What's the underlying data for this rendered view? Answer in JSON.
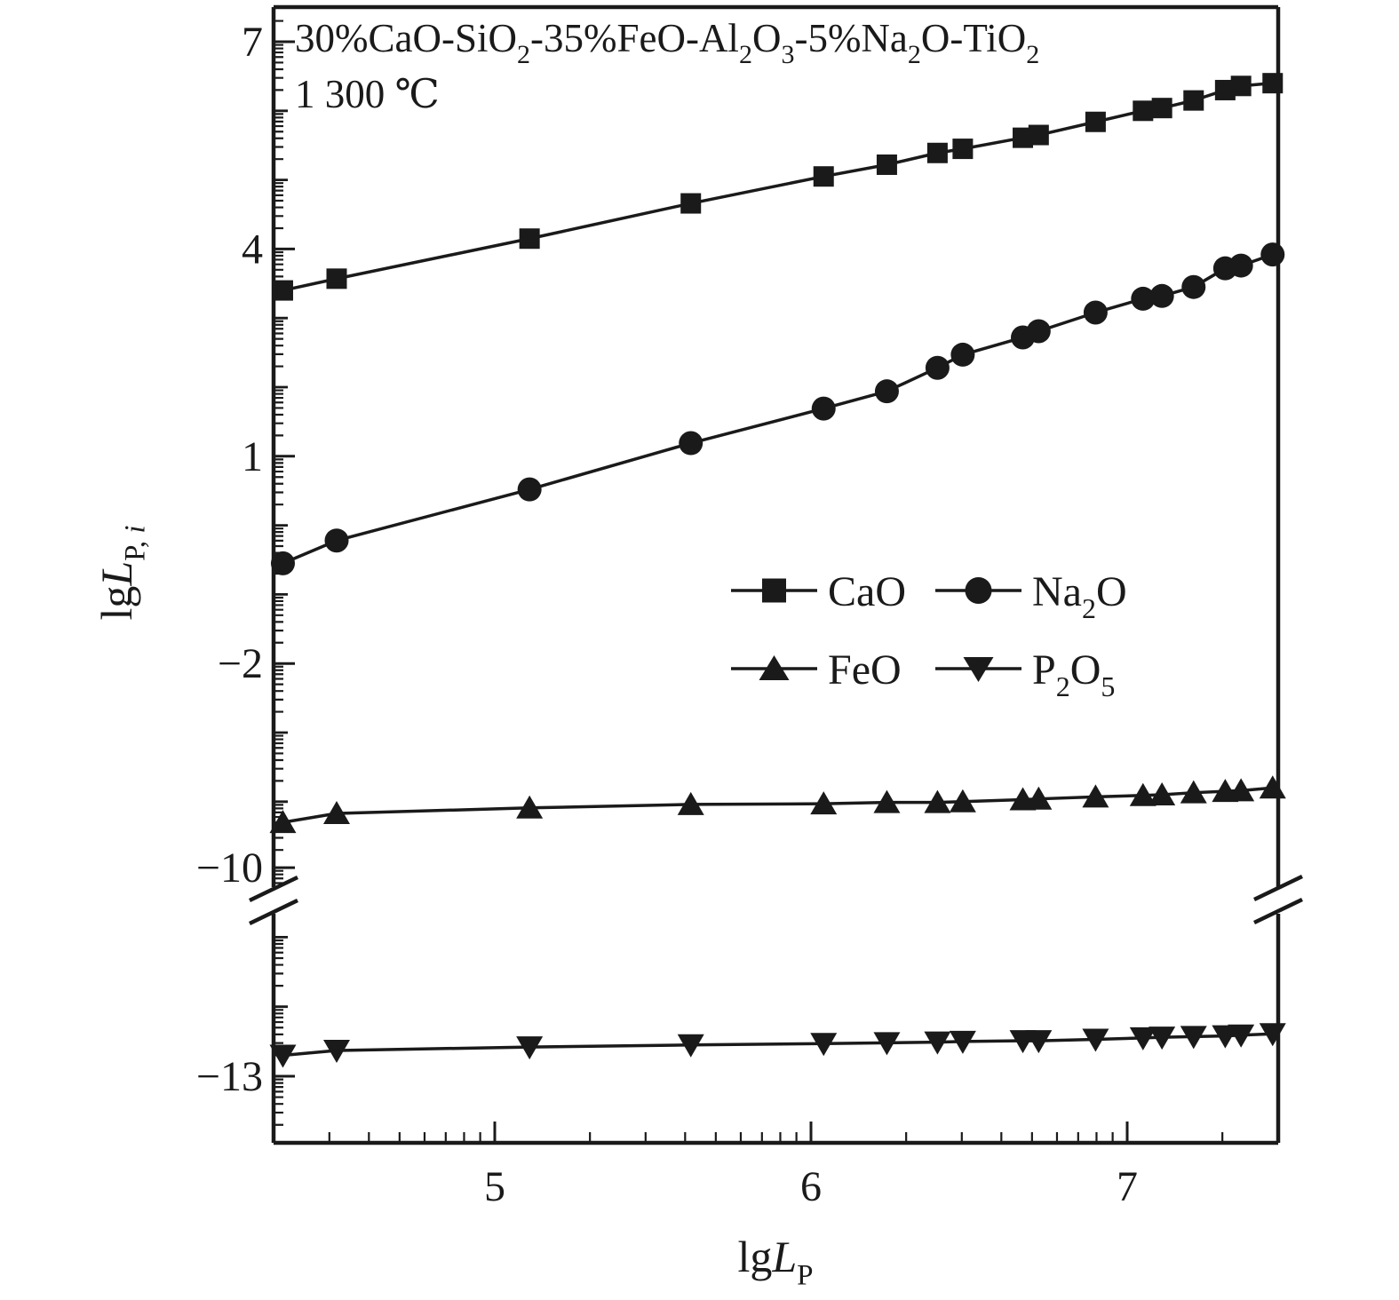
{
  "chart_data": {
    "type": "line",
    "title": "30%CaO-SiO_2_-35%FeO-Al_2_O_3_-5%Na_2_O-TiO_2_",
    "subtitle": "1 300 ℃",
    "xlabel_segments": [
      {
        "t": "lg"
      },
      {
        "t": "L",
        "italic": true
      },
      {
        "t": "P",
        "sub": true
      }
    ],
    "ylabel_segments": [
      {
        "t": "lg"
      },
      {
        "t": "L",
        "italic": true
      },
      {
        "t": "P, ",
        "sub": true
      },
      {
        "t": "i",
        "sub": true,
        "italic": true
      }
    ],
    "x_axis": {
      "range": [
        4.3,
        7.48
      ],
      "scale": "log-decade-minor-ticks",
      "major_ticks": [
        {
          "label": "5",
          "value": 5
        },
        {
          "label": "6",
          "value": 6
        },
        {
          "label": "7",
          "value": 7
        }
      ]
    },
    "y_axis": {
      "upper_range": [
        -5.1,
        7.5
      ],
      "lower_range": [
        -13.96,
        -10.0
      ],
      "axis_break_between": [
        -5,
        -10
      ],
      "scale": "log-decade-minor-ticks",
      "major_ticks": [
        {
          "label": "7",
          "value": 7,
          "segment": "upper"
        },
        {
          "label": "4",
          "value": 4,
          "segment": "upper"
        },
        {
          "label": "1",
          "value": 1,
          "segment": "upper"
        },
        {
          "label": "−2",
          "value": -2,
          "segment": "upper"
        },
        {
          "label": "−10",
          "value": -10,
          "segment": "lower"
        },
        {
          "label": "−13",
          "value": -13,
          "segment": "lower"
        }
      ]
    },
    "x": [
      4.33,
      4.5,
      5.11,
      5.62,
      6.04,
      6.24,
      6.4,
      6.48,
      6.67,
      6.72,
      6.9,
      7.05,
      7.11,
      7.21,
      7.31,
      7.36,
      7.46
    ],
    "series": [
      {
        "name": "CaO",
        "label": "CaO",
        "marker": "square",
        "values": [
          3.4,
          3.57,
          4.15,
          4.66,
          5.05,
          5.22,
          5.39,
          5.45,
          5.61,
          5.65,
          5.84,
          6.0,
          6.04,
          6.15,
          6.3,
          6.36,
          6.4
        ]
      },
      {
        "name": "Na2O",
        "label": "Na_2_O",
        "marker": "circle",
        "values": [
          -0.55,
          -0.22,
          0.52,
          1.19,
          1.69,
          1.94,
          2.28,
          2.47,
          2.72,
          2.81,
          3.08,
          3.28,
          3.32,
          3.45,
          3.72,
          3.76,
          3.92
        ]
      },
      {
        "name": "FeO",
        "label": "FeO",
        "marker": "triangle-up",
        "values": [
          -4.3,
          -4.17,
          -4.09,
          -4.04,
          -4.03,
          -4.01,
          -4.01,
          -4.0,
          -3.97,
          -3.96,
          -3.93,
          -3.91,
          -3.9,
          -3.87,
          -3.85,
          -3.84,
          -3.8
        ]
      },
      {
        "name": "P2O5",
        "label": "P_2_O_5_",
        "marker": "triangle-down",
        "values": [
          -12.7,
          -12.63,
          -12.58,
          -12.55,
          -12.53,
          -12.52,
          -12.51,
          -12.5,
          -12.49,
          -12.49,
          -12.47,
          -12.45,
          -12.44,
          -12.43,
          -12.42,
          -12.41,
          -12.39
        ]
      }
    ],
    "legend": {
      "position": "center-right",
      "rows": 2,
      "columns": 2,
      "items": [
        "CaO",
        "Na_2_O",
        "FeO",
        "P_2_O_5_"
      ]
    },
    "grid": "off",
    "colors": {
      "foreground": "#1a1a1a",
      "background": "#ffffff"
    }
  }
}
